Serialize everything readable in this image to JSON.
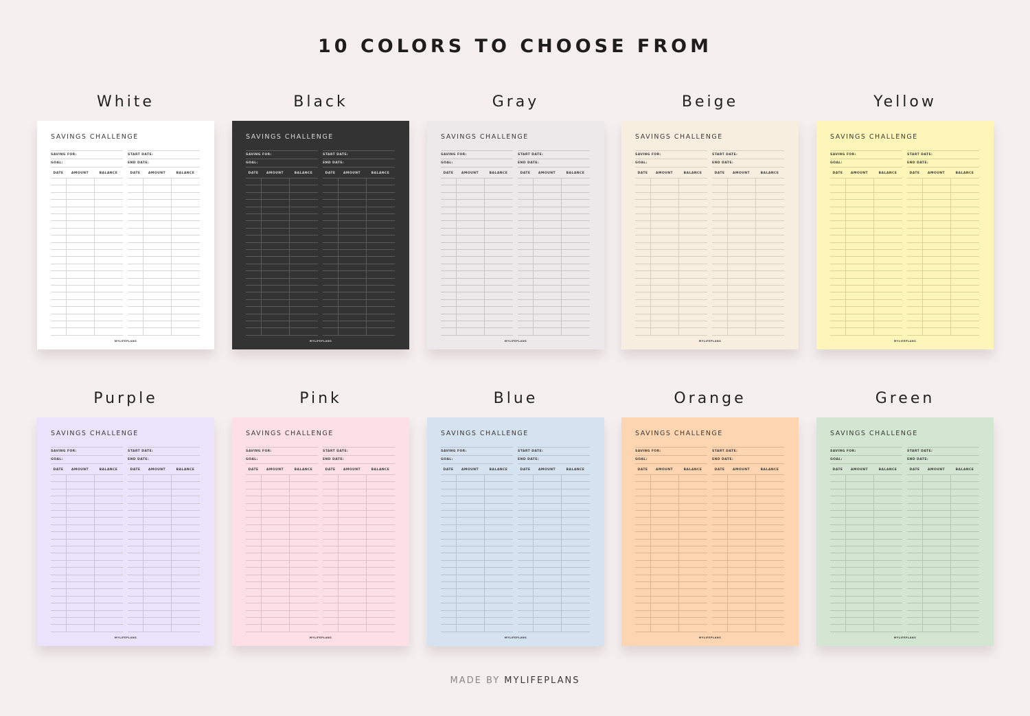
{
  "heading": "10 COLORS TO CHOOSE FROM",
  "sheet": {
    "title": "SAVINGS CHALLENGE",
    "saving_for": "SAVING FOR:",
    "goal": "GOAL:",
    "start_date": "START DATE:",
    "end_date": "END DATE:",
    "columns": [
      "DATE",
      "AMOUNT",
      "BALANCE"
    ],
    "footer": "MYLIFEPLANS"
  },
  "colors": [
    {
      "name": "White",
      "bg": "#ffffff",
      "ink": "#3a3a3a",
      "line": "#d6d6d6"
    },
    {
      "name": "Black",
      "bg": "#333333",
      "ink": "#d8d8d8",
      "line": "#5a5a5a"
    },
    {
      "name": "Gray",
      "bg": "#ebe9e9",
      "ink": "#3a3a3a",
      "line": "#c9c6c6"
    },
    {
      "name": "Beige",
      "bg": "#f8eee0",
      "ink": "#3a3a3a",
      "line": "#d9cfc1"
    },
    {
      "name": "Yellow",
      "bg": "#fdf6b8",
      "ink": "#3a3a3a",
      "line": "#dcd59a"
    },
    {
      "name": "Purple",
      "bg": "#ebe3fb",
      "ink": "#3a3a3a",
      "line": "#cbc3db"
    },
    {
      "name": "Pink",
      "bg": "#fde0e6",
      "ink": "#3a3a3a",
      "line": "#dcc1c7"
    },
    {
      "name": "Blue",
      "bg": "#d5e2ef",
      "ink": "#3a3a3a",
      "line": "#b6c3d0"
    },
    {
      "name": "Orange",
      "bg": "#fdd5b0",
      "ink": "#3a3a3a",
      "line": "#dbb694"
    },
    {
      "name": "Green",
      "bg": "#d2e6d1",
      "ink": "#3a3a3a",
      "line": "#b3c7b2"
    }
  ],
  "credit": {
    "prefix": "MADE BY",
    "brand": "MYLIFEPLANS"
  }
}
